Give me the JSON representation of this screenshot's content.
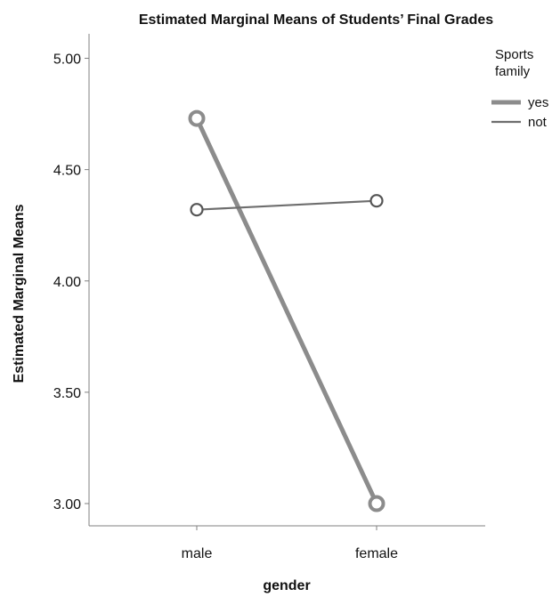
{
  "chart_data": {
    "type": "line",
    "title": "Estimated Marginal Means of Students’ Final Grades",
    "xlabel": "gender",
    "ylabel": "Estimated Marginal Means",
    "categories": [
      "male",
      "female"
    ],
    "yticks": [
      "3.00",
      "3.50",
      "4.00",
      "4.50",
      "5.00"
    ],
    "ylim": [
      2.9,
      5.11
    ],
    "grid": false,
    "legend": {
      "title_line1": "Sports",
      "title_line2": "family",
      "placement": "top-right"
    },
    "series": [
      {
        "name": "yes",
        "values": [
          4.73,
          3.0
        ],
        "color": "#8c8c8c",
        "emphasis": "thick"
      },
      {
        "name": "not",
        "values": [
          4.32,
          4.36
        ],
        "color": "#6e6e6e",
        "emphasis": "thin"
      }
    ]
  }
}
